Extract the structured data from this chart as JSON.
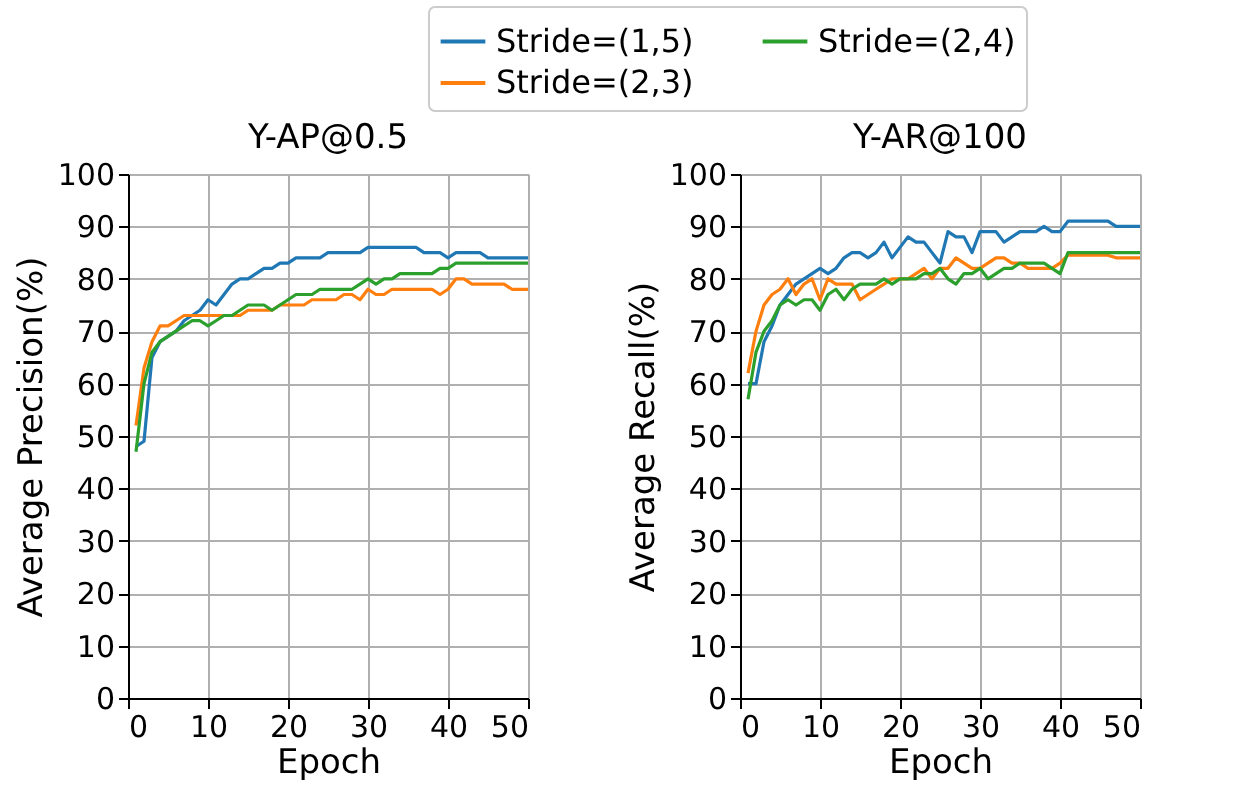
{
  "chart_data": [
    {
      "type": "line",
      "title": "Y-AP@0.5",
      "xlabel": "Epoch",
      "ylabel": "Average Precision(%)",
      "x": [
        1,
        2,
        3,
        4,
        5,
        6,
        7,
        8,
        9,
        10,
        11,
        12,
        13,
        14,
        15,
        16,
        17,
        18,
        19,
        20,
        21,
        22,
        23,
        24,
        25,
        26,
        27,
        28,
        29,
        30,
        31,
        32,
        33,
        34,
        35,
        36,
        37,
        38,
        39,
        40,
        41,
        42,
        43,
        44,
        45,
        46,
        47,
        48,
        49,
        50
      ],
      "xlim": [
        0,
        50
      ],
      "xticks": [
        0,
        10,
        20,
        30,
        40,
        50
      ],
      "ylim": [
        0,
        100
      ],
      "yticks": [
        0,
        10,
        20,
        30,
        40,
        50,
        60,
        70,
        80,
        90,
        100
      ],
      "grid": true,
      "legend": "top right",
      "series": [
        {
          "name": "Stride=(1,5)",
          "color": "#1f77b4",
          "values": [
            48,
            49,
            65,
            68,
            69,
            70,
            72,
            73,
            74,
            76,
            75,
            77,
            79,
            80,
            80,
            81,
            82,
            82,
            83,
            83,
            84,
            84,
            84,
            84,
            85,
            85,
            85,
            85,
            85,
            86,
            86,
            86,
            86,
            86,
            86,
            86,
            85,
            85,
            85,
            84,
            85,
            85,
            85,
            85,
            84,
            84,
            84,
            84,
            84,
            84
          ]
        },
        {
          "name": "Stride=(2,3)",
          "color": "#ff7f0e",
          "values": [
            52,
            63,
            68,
            71,
            71,
            72,
            73,
            73,
            73,
            73,
            73,
            73,
            73,
            73,
            74,
            74,
            74,
            74,
            75,
            75,
            75,
            75,
            76,
            76,
            76,
            76,
            77,
            77,
            76,
            78,
            77,
            77,
            78,
            78,
            78,
            78,
            78,
            78,
            77,
            78,
            80,
            80,
            79,
            79,
            79,
            79,
            79,
            78,
            78,
            78
          ]
        },
        {
          "name": "Stride=(2,4)",
          "color": "#2ca02c",
          "values": [
            47,
            60,
            66,
            68,
            69,
            70,
            71,
            72,
            72,
            71,
            72,
            73,
            73,
            74,
            75,
            75,
            75,
            74,
            75,
            76,
            77,
            77,
            77,
            78,
            78,
            78,
            78,
            78,
            79,
            80,
            79,
            80,
            80,
            81,
            81,
            81,
            81,
            81,
            82,
            82,
            83,
            83,
            83,
            83,
            83,
            83,
            83,
            83,
            83,
            83
          ]
        }
      ]
    },
    {
      "type": "line",
      "title": "Y-AR@100",
      "xlabel": "Epoch",
      "ylabel": "Average Recall(%)",
      "x": [
        1,
        2,
        3,
        4,
        5,
        6,
        7,
        8,
        9,
        10,
        11,
        12,
        13,
        14,
        15,
        16,
        17,
        18,
        19,
        20,
        21,
        22,
        23,
        24,
        25,
        26,
        27,
        28,
        29,
        30,
        31,
        32,
        33,
        34,
        35,
        36,
        37,
        38,
        39,
        40,
        41,
        42,
        43,
        44,
        45,
        46,
        47,
        48,
        49,
        50
      ],
      "xlim": [
        0,
        50
      ],
      "xticks": [
        0,
        10,
        20,
        30,
        40,
        50
      ],
      "ylim": [
        0,
        100
      ],
      "yticks": [
        0,
        10,
        20,
        30,
        40,
        50,
        60,
        70,
        80,
        90,
        100
      ],
      "grid": true,
      "series": [
        {
          "color": "#1f77b4",
          "values": [
            60,
            60,
            68,
            71,
            75,
            77,
            79,
            80,
            81,
            82,
            81,
            82,
            84,
            85,
            85,
            84,
            85,
            87,
            84,
            86,
            88,
            87,
            87,
            85,
            83,
            89,
            88,
            88,
            85,
            89,
            89,
            89,
            87,
            88,
            89,
            89,
            89,
            90,
            89,
            89,
            91,
            91,
            91,
            91,
            91,
            91,
            90,
            90,
            90,
            90
          ]
        },
        {
          "color": "#ff7f0e",
          "values": [
            62,
            70,
            75,
            77,
            78,
            80,
            77,
            79,
            80,
            76,
            80,
            79,
            79,
            79,
            76,
            77,
            78,
            79,
            80,
            80,
            80,
            81,
            82,
            80,
            82,
            82,
            84,
            83,
            82,
            82,
            83,
            84,
            84,
            83,
            83,
            82,
            82,
            82,
            82,
            83,
            84.5,
            84.5,
            84.5,
            84.5,
            84.5,
            84.5,
            84,
            84,
            84,
            84
          ]
        },
        {
          "color": "#2ca02c",
          "values": [
            57,
            66,
            70,
            72,
            75,
            76,
            75,
            76,
            76,
            74,
            77,
            78,
            76,
            78,
            79,
            79,
            79,
            80,
            79,
            80,
            80,
            80,
            81,
            81,
            82,
            80,
            79,
            81,
            81,
            82,
            80,
            81,
            82,
            82,
            83,
            83,
            83,
            83,
            82,
            81,
            85,
            85,
            85,
            85,
            85,
            85,
            85,
            85,
            85,
            85
          ]
        }
      ]
    }
  ]
}
